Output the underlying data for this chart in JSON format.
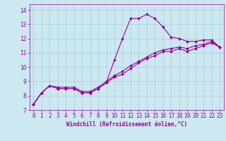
{
  "xlabel": "Windchill (Refroidissement éolien,°C)",
  "ylabel": "",
  "background_color": "#cce8f0",
  "grid_color": "#aaccdd",
  "line_color": "#990099",
  "x_ticks": [
    0,
    1,
    2,
    3,
    4,
    5,
    6,
    7,
    8,
    9,
    10,
    11,
    12,
    13,
    14,
    15,
    16,
    17,
    18,
    19,
    20,
    21,
    22,
    23
  ],
  "y_ticks": [
    7,
    8,
    9,
    10,
    11,
    12,
    13,
    14
  ],
  "xlim": [
    -0.5,
    23.5
  ],
  "ylim": [
    7,
    14.4
  ],
  "line1_x": [
    0,
    1,
    2,
    3,
    4,
    5,
    6,
    7,
    8,
    9,
    10,
    11,
    12,
    13,
    14,
    15,
    16,
    17,
    18,
    19,
    20,
    21,
    22,
    23
  ],
  "line1_y": [
    7.4,
    8.2,
    8.7,
    8.5,
    8.5,
    8.5,
    8.2,
    8.2,
    8.5,
    8.9,
    10.5,
    12.0,
    13.4,
    13.4,
    13.7,
    13.4,
    12.8,
    12.1,
    12.0,
    11.8,
    11.8,
    11.9,
    11.9,
    11.4
  ],
  "line2_x": [
    0,
    1,
    2,
    3,
    4,
    5,
    6,
    7,
    8,
    9,
    10,
    11,
    12,
    13,
    14,
    15,
    16,
    17,
    18,
    19,
    20,
    21,
    22,
    23
  ],
  "line2_y": [
    7.4,
    8.2,
    8.7,
    8.5,
    8.5,
    8.5,
    8.2,
    8.2,
    8.5,
    8.9,
    9.3,
    9.5,
    9.9,
    10.3,
    10.6,
    10.8,
    11.1,
    11.1,
    11.3,
    11.1,
    11.3,
    11.5,
    11.7,
    11.4
  ],
  "line3_x": [
    0,
    1,
    2,
    3,
    4,
    5,
    6,
    7,
    8,
    9,
    10,
    11,
    12,
    13,
    14,
    15,
    16,
    17,
    18,
    19,
    20,
    21,
    22,
    23
  ],
  "line3_y": [
    7.4,
    8.2,
    8.7,
    8.6,
    8.6,
    8.6,
    8.3,
    8.3,
    8.6,
    9.0,
    9.4,
    9.7,
    10.1,
    10.4,
    10.7,
    11.0,
    11.2,
    11.3,
    11.4,
    11.3,
    11.5,
    11.6,
    11.8,
    11.4
  ],
  "marker_size": 2.0,
  "line_width": 0.8,
  "tick_fontsize": 5.5,
  "xlabel_fontsize": 5.5
}
